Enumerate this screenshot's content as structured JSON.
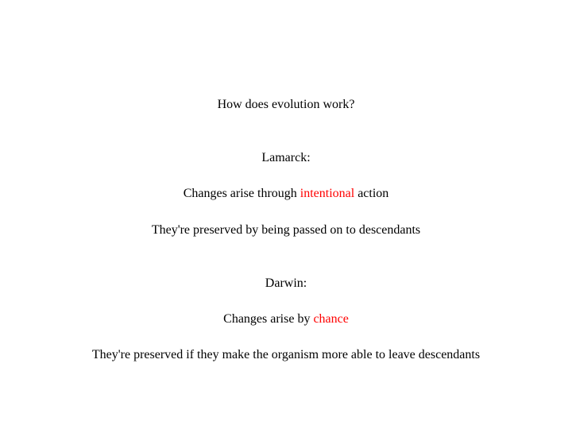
{
  "slide": {
    "background_color": "#ffffff",
    "text_color": "#000000",
    "highlight_color": "#ff0000",
    "font_family": "Times New Roman",
    "font_size_pt": 12,
    "title": "How does evolution work?",
    "sections": [
      {
        "heading": "Lamarck:",
        "line1_before": "Changes arise through ",
        "line1_highlight": "intentional",
        "line1_after": " action",
        "line2": "They're preserved by being passed on to descendants"
      },
      {
        "heading": "Darwin:",
        "line1_before": "Changes arise by ",
        "line1_highlight": "chance",
        "line1_after": "",
        "line2": "They're preserved if they make the organism more able to leave descendants"
      }
    ]
  }
}
